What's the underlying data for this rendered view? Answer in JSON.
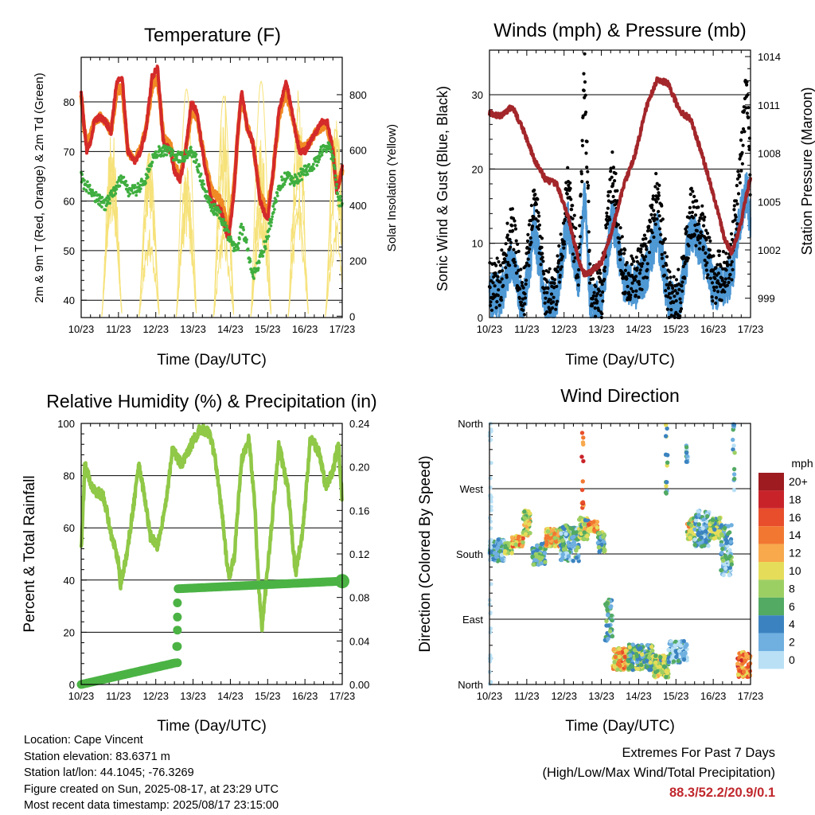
{
  "time_ticks": [
    "10/23",
    "11/23",
    "12/23",
    "13/23",
    "14/23",
    "15/23",
    "16/23",
    "17/23"
  ],
  "colors": {
    "t2m": "#d42a2a",
    "t9m": "#f08a24",
    "td": "#3fae3f",
    "solar": "#f6e27a",
    "gust": "#000000",
    "wind": "#4e98d4",
    "pressure": "#a3262a",
    "rh": "#90c847",
    "precip": "#4bb344"
  },
  "chart_data": [
    {
      "type": "line",
      "title": "Temperature (F)",
      "xlabel": "Time (Day/UTC)",
      "ylabel": "2m & 9m T (Red, Orange) & 2m Td (Green)",
      "y2label": "Solar Insolation (Yellow)",
      "xlim": [
        0,
        7
      ],
      "ylim": [
        36.5,
        89
      ],
      "y2lim": [
        -5,
        935
      ],
      "yticks": [
        40,
        50,
        60,
        70,
        80
      ],
      "y2ticks": [
        0,
        200,
        400,
        600,
        800
      ],
      "x": [
        0,
        0.08,
        0.15,
        0.25,
        0.35,
        0.5,
        0.65,
        0.8,
        0.95,
        1.1,
        1.25,
        1.45,
        1.6,
        1.75,
        1.9,
        2.05,
        2.2,
        2.4,
        2.5,
        2.65,
        2.8,
        2.95,
        3.1,
        3.3,
        3.5,
        3.75,
        3.95,
        4.1,
        4.2,
        4.3,
        4.45,
        4.6,
        4.8,
        5.0,
        5.15,
        5.3,
        5.5,
        5.7,
        5.85,
        6.0,
        6.15,
        6.3,
        6.45,
        6.6,
        6.75,
        6.85,
        6.92,
        7.0
      ],
      "series": [
        {
          "name": "2m T",
          "color_key": "t2m",
          "values": [
            82,
            75,
            70,
            72,
            76,
            77,
            76,
            74,
            84,
            85,
            70,
            68,
            70,
            75,
            85,
            87,
            72,
            70,
            66,
            64,
            70,
            80,
            78,
            68,
            60,
            58,
            52,
            62,
            74,
            82,
            75,
            72,
            60,
            56,
            66,
            78,
            84,
            76,
            70,
            70,
            72,
            74,
            76,
            76,
            70,
            62,
            64,
            67
          ]
        },
        {
          "name": "9m T",
          "color_key": "t9m",
          "values": [
            81,
            75,
            72,
            73,
            76,
            77,
            76,
            74,
            82,
            83,
            70,
            68,
            71,
            75,
            83,
            85,
            73,
            71,
            67,
            65,
            70,
            78,
            77,
            69,
            62,
            60,
            54,
            63,
            74,
            81,
            75,
            72,
            61,
            58,
            66,
            77,
            82,
            76,
            71,
            71,
            72,
            74,
            75,
            75,
            70,
            63,
            64,
            66
          ]
        },
        {
          "name": "2m Td",
          "color_key": "td",
          "values": [
            65,
            63,
            63,
            62,
            61,
            60,
            59,
            61,
            63,
            65,
            62,
            62,
            63,
            65,
            68,
            70,
            70,
            70,
            69,
            69,
            69,
            70,
            68,
            62,
            59,
            57,
            53,
            51,
            50,
            55,
            51,
            45,
            48,
            53,
            58,
            63,
            65,
            64,
            65,
            66,
            67,
            68,
            70,
            71,
            69,
            63,
            60,
            60
          ]
        }
      ],
      "solar": {
        "day_starts": [
          0.55,
          1.55,
          2.55,
          3.55,
          4.55,
          5.55,
          6.55
        ],
        "day_length": 0.55,
        "peaks": [
          840,
          870,
          910,
          880,
          900,
          860,
          880
        ]
      }
    },
    {
      "type": "line",
      "title": "Winds (mph) & Pressure (mb)",
      "xlabel": "Time (Day/UTC)",
      "ylabel": "Sonic Wind & Gust (Blue, Black)",
      "y2label": "Station Pressure (Maroon)",
      "xlim": [
        0,
        7
      ],
      "ylim": [
        0,
        36
      ],
      "y2lim": [
        997.8,
        1014.4
      ],
      "yticks": [
        0,
        10,
        20,
        30
      ],
      "y2ticks": [
        999,
        1002,
        1005,
        1008,
        1011,
        1014
      ],
      "x": [
        0,
        0.3,
        0.6,
        0.9,
        1.2,
        1.5,
        1.8,
        2.1,
        2.4,
        2.55,
        2.7,
        3.0,
        3.3,
        3.6,
        3.9,
        4.2,
        4.5,
        4.8,
        5.1,
        5.4,
        5.7,
        6.0,
        6.3,
        6.5,
        6.75,
        6.9,
        7.0
      ],
      "series": [
        {
          "name": "Sonic Wind",
          "color_key": "wind",
          "values": [
            3,
            3,
            8,
            1,
            12,
            2,
            3,
            13,
            5,
            17,
            2,
            2,
            14,
            5,
            4,
            6,
            12,
            2,
            2,
            12,
            9,
            4,
            4,
            6,
            14,
            17,
            13
          ]
        },
        {
          "name": "Gust",
          "color_key": "gust",
          "values": [
            4,
            5,
            12,
            2,
            17,
            3,
            4,
            17,
            6,
            34,
            4,
            3,
            20,
            6,
            5,
            8,
            17,
            3,
            3,
            14,
            12,
            5,
            6,
            8,
            22,
            31,
            18
          ]
        },
        {
          "name": "Station Pressure",
          "color_key": "pressure",
          "values": [
            1010.5,
            1010.3,
            1010.9,
            1009.5,
            1007.6,
            1006.4,
            1006.1,
            1004.1,
            1001.3,
            1000.5,
            1000.6,
            1001.2,
            1003.3,
            1006.0,
            1007.9,
            1010.8,
            1012.6,
            1012.3,
            1010.6,
            1010.1,
            1007.9,
            1005.5,
            1002.7,
            1001.8,
            1003.7,
            1005.5,
            1006.5
          ]
        }
      ]
    },
    {
      "type": "line",
      "title": "Relative Humidity (%) & Precipitation (in)",
      "xlabel": "Time (Day/UTC)",
      "ylabel": "Percent & Total Rainfall",
      "xlim": [
        0,
        7
      ],
      "ylim": [
        0,
        100
      ],
      "y2lim": [
        0,
        0.24
      ],
      "yticks": [
        0,
        20,
        40,
        60,
        80,
        100
      ],
      "y2ticks": [
        "0.00",
        "0.04",
        "0.08",
        "0.12",
        "0.16",
        "0.20",
        "0.24"
      ],
      "x": [
        0,
        0.1,
        0.25,
        0.4,
        0.6,
        0.8,
        1.0,
        1.05,
        1.2,
        1.4,
        1.55,
        1.7,
        1.85,
        2.05,
        2.25,
        2.45,
        2.7,
        2.95,
        3.2,
        3.45,
        3.6,
        3.8,
        3.95,
        4.1,
        4.3,
        4.5,
        4.65,
        4.75,
        4.85,
        5.05,
        5.3,
        5.55,
        5.75,
        5.95,
        6.15,
        6.4,
        6.55,
        6.75,
        6.9,
        7.0
      ],
      "series": [
        {
          "name": "Relative Humidity",
          "color_key": "rh",
          "values": [
            52,
            84,
            77,
            74,
            72,
            58,
            47,
            38,
            48,
            68,
            84,
            72,
            57,
            53,
            68,
            90,
            84,
            92,
            98,
            96,
            86,
            62,
            41,
            48,
            86,
            94,
            70,
            40,
            22,
            52,
            92,
            74,
            42,
            60,
            95,
            88,
            76,
            82,
            93,
            70
          ]
        }
      ],
      "precipitation": {
        "x": [
          0,
          2.55,
          2.57,
          2.59,
          2.6,
          7.0
        ],
        "values": [
          0,
          0.02,
          0.05,
          0.07,
          0.088,
          0.095
        ]
      }
    },
    {
      "type": "scatter",
      "title": "Wind Direction",
      "xlabel": "Time (Day/UTC)",
      "ylabel": "Direction (Colored By Speed)",
      "xlim": [
        0,
        7
      ],
      "ylim": [
        0,
        360
      ],
      "ytick_labels": [
        "North",
        "East",
        "South",
        "West",
        "North"
      ],
      "legend": {
        "title": "mph",
        "labels": [
          "20+",
          "18",
          "16",
          "14",
          "12",
          "10",
          "8",
          "6",
          "4",
          "2",
          "0"
        ],
        "colors": [
          "#9e1b20",
          "#c9232a",
          "#e84e2b",
          "#f27831",
          "#f8a94c",
          "#e5dd5a",
          "#9ccf63",
          "#52aa63",
          "#3b83c0",
          "#6fb0e0",
          "#b9e0f5"
        ],
        "placement": "right"
      },
      "segments": [
        {
          "x": [
            0,
            0.4
          ],
          "dir": [
            170,
            200
          ],
          "speed": 3
        },
        {
          "x": [
            0.4,
            0.6
          ],
          "dir": [
            180,
            195
          ],
          "speed": 8
        },
        {
          "x": [
            0.6,
            0.9
          ],
          "dir": [
            190,
            205
          ],
          "speed": 12
        },
        {
          "x": [
            0.9,
            1.1
          ],
          "dir": [
            205,
            240
          ],
          "speed": 9
        },
        {
          "x": [
            1.15,
            1.5
          ],
          "dir": [
            165,
            195
          ],
          "speed": 5
        },
        {
          "x": [
            1.5,
            1.9
          ],
          "dir": [
            190,
            215
          ],
          "speed": 11
        },
        {
          "x": [
            1.9,
            2.4
          ],
          "dir": [
            170,
            220
          ],
          "speed": 4
        },
        {
          "x": [
            2.4,
            2.65
          ],
          "dir": [
            200,
            230
          ],
          "speed": 8
        },
        {
          "x": [
            2.65,
            2.9
          ],
          "dir": [
            210,
            225
          ],
          "speed": 13
        },
        {
          "x": [
            2.9,
            3.1
          ],
          "dir": [
            180,
            210
          ],
          "speed": 6
        },
        {
          "x": [
            3.1,
            3.3
          ],
          "dir": [
            60,
            120
          ],
          "speed": 4
        },
        {
          "x": [
            3.3,
            3.7
          ],
          "dir": [
            20,
            50
          ],
          "speed": 12
        },
        {
          "x": [
            3.7,
            4.4
          ],
          "dir": [
            20,
            55
          ],
          "speed": 6
        },
        {
          "x": [
            4.4,
            4.8
          ],
          "dir": [
            10,
            40
          ],
          "speed": 8
        },
        {
          "x": [
            4.8,
            5.3
          ],
          "dir": [
            30,
            60
          ],
          "speed": 2
        },
        {
          "x": [
            5.3,
            5.5
          ],
          "dir": [
            200,
            230
          ],
          "speed": 10
        },
        {
          "x": [
            5.5,
            5.9
          ],
          "dir": [
            190,
            240
          ],
          "speed": 3
        },
        {
          "x": [
            5.9,
            6.2
          ],
          "dir": [
            200,
            230
          ],
          "speed": 7
        },
        {
          "x": [
            6.2,
            6.5
          ],
          "dir": [
            150,
            220
          ],
          "speed": 4
        },
        {
          "x": [
            6.65,
            7.0
          ],
          "dir": [
            10,
            45
          ],
          "speed": 14
        }
      ],
      "spikes": [
        {
          "x": 2.5,
          "dir": [
            240,
            350
          ],
          "speed": 15
        },
        {
          "x": 4.75,
          "dir": [
            260,
            360
          ],
          "speed": 6
        },
        {
          "x": 5.3,
          "dir": [
            300,
            340
          ],
          "speed": 3
        },
        {
          "x": 6.55,
          "dir": [
            250,
            360
          ],
          "speed": 4
        }
      ]
    }
  ],
  "footer": {
    "location": "Location: Cape Vincent",
    "elevation": "Station elevation: 83.6371 m",
    "latlon": "Station lat/lon: 44.1045; -76.3269",
    "created": "Figure created on Sun, 2025-08-17, at 23:29 UTC",
    "timestamp": "Most recent data timestamp: 2025/08/17 23:15:00",
    "extremes_title": "Extremes For Past 7 Days",
    "extremes_subtitle": "(High/Low/Max Wind/Total Precipitation)",
    "extremes_values": "88.3/52.2/20.9/0.1"
  }
}
